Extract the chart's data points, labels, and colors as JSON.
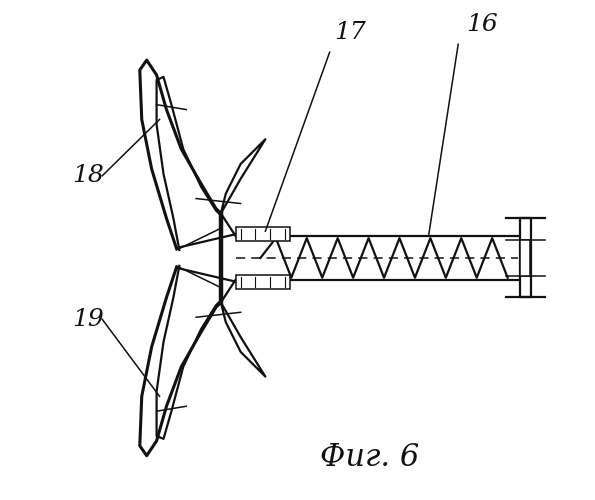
{
  "title": "Фиг. 6",
  "bg_color": "#ffffff",
  "line_color": "#111111",
  "label_fontsize": 18
}
